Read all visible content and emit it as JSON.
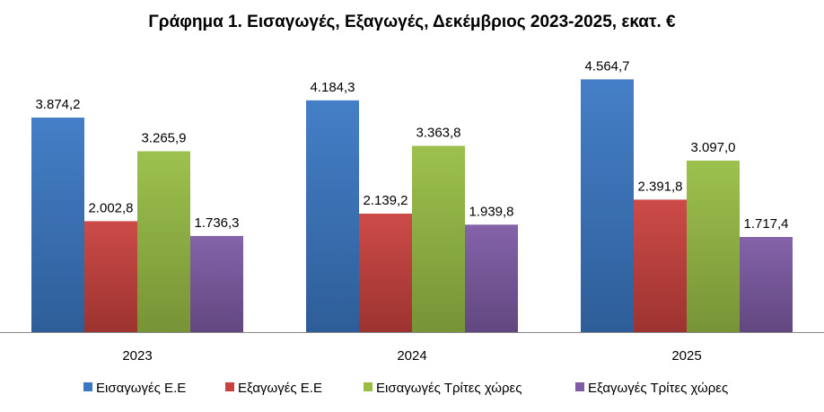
{
  "chart_data": {
    "type": "bar",
    "title": "Γράφημα 1. Εισαγωγές, Εξαγωγές, Δεκέμβριος 2023-2025, εκατ. €",
    "categories": [
      "2023",
      "2024",
      "2025"
    ],
    "series": [
      {
        "name": "Εισαγωγές Ε.Ε",
        "values": [
          3874.2,
          4184.3,
          4564.7
        ],
        "labels": [
          "3.874,2",
          "4.184,3",
          "4.564,7"
        ],
        "color": "#3B78C4"
      },
      {
        "name": "Εξαγωγές  Ε.Ε",
        "values": [
          2002.8,
          2139.2,
          2391.8
        ],
        "labels": [
          "2.002,8",
          "2.139,2",
          "2.391,8"
        ],
        "color": "#C9413E"
      },
      {
        "name": "Εισαγωγές Τρίτες χώρες",
        "values": [
          3265.9,
          3363.8,
          3097.0
        ],
        "labels": [
          "3.265,9",
          "3.363,8",
          "3.097,0"
        ],
        "color": "#98BE45"
      },
      {
        "name": "Εξαγωγές Τρίτες χώρες",
        "values": [
          1736.3,
          1939.8,
          1717.4
        ],
        "labels": [
          "1.736,3",
          "1.939,8",
          "1.717,4"
        ],
        "color": "#7E5BA4"
      }
    ],
    "ylim": [
      0,
      5000
    ],
    "xlabel": "",
    "ylabel": "",
    "grid": false,
    "legend": "bottom"
  }
}
